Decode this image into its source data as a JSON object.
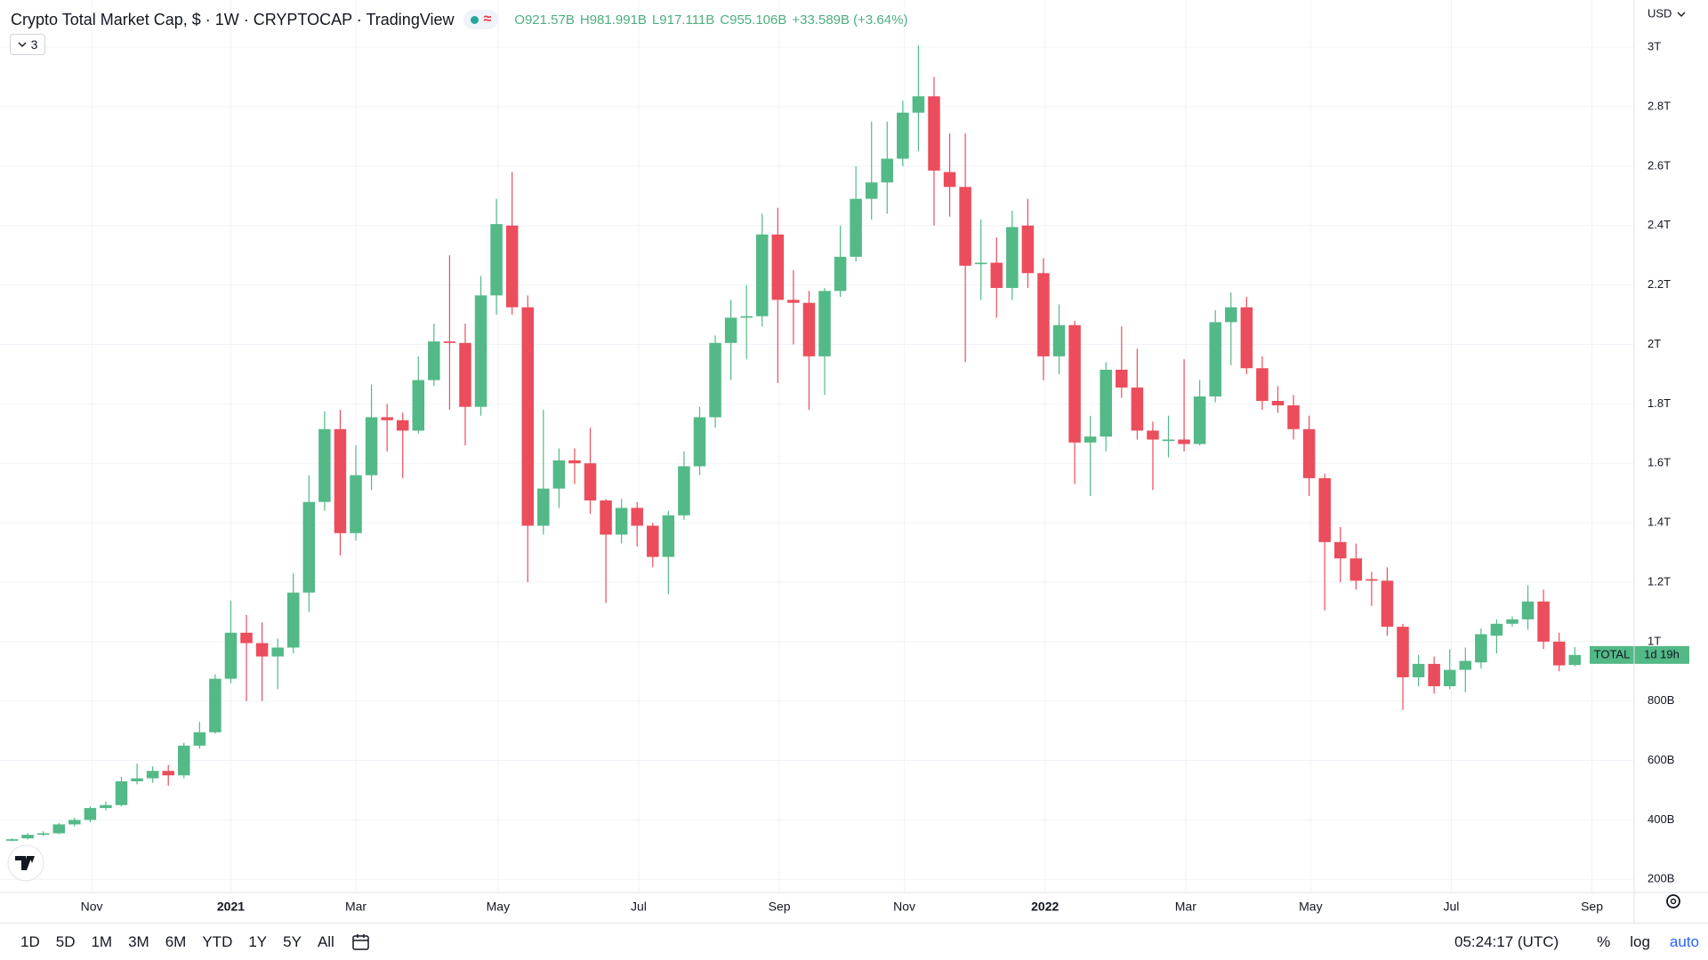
{
  "header": {
    "title": "Crypto Total Market Cap, $ · 1W · CRYPTOCAP · TradingView",
    "legend": [
      {
        "key": "O",
        "value": "921.57B"
      },
      {
        "key": "H",
        "value": "981.991B"
      },
      {
        "key": "L",
        "value": "917.111B"
      },
      {
        "key": "C",
        "value": "955.106B"
      }
    ],
    "change": "+33.589B (+3.64%)",
    "indicators": 3
  },
  "chart_data": {
    "type": "candlestick",
    "currency": "USD",
    "symbol_tag": "TOTAL",
    "countdown": "1d 19h",
    "up_color": "#53b987",
    "down_color": "#eb4d5c",
    "grid": true,
    "open": [
      330,
      338,
      350,
      355,
      385,
      400,
      440,
      450,
      530,
      540,
      565,
      550,
      650,
      695,
      875,
      1030,
      995,
      950,
      980,
      1165,
      1470,
      1715,
      1365,
      1560,
      1755,
      1745,
      1710,
      1880,
      2010,
      2005,
      1790,
      2165,
      2400,
      2125,
      1390,
      1515,
      1610,
      1600,
      1475,
      1360,
      1450,
      1390,
      1285,
      1425,
      1590,
      1755,
      2005,
      2090,
      2095,
      2370,
      2150,
      2140,
      1960,
      2180,
      2295,
      2490,
      2545,
      2625,
      2780,
      2835,
      2580,
      2530,
      2270,
      2275,
      2190,
      2400,
      2240,
      1960,
      2065,
      1670,
      1690,
      1915,
      1855,
      1710,
      1675,
      1680,
      1665,
      1825,
      2075,
      2125,
      1920,
      1810,
      1795,
      1715,
      1550,
      1335,
      1280,
      1210,
      1205,
      1050,
      880,
      925,
      850,
      905,
      930,
      1020,
      1060,
      1075,
      1135,
      1000,
      921.57
    ],
    "high": [
      338,
      356,
      362,
      390,
      408,
      446,
      462,
      545,
      590,
      580,
      585,
      660,
      730,
      890,
      1137,
      1090,
      1065,
      1010,
      1230,
      1560,
      1775,
      1780,
      1660,
      1865,
      1800,
      1770,
      1960,
      2070,
      2300,
      2070,
      2230,
      2490,
      2580,
      2165,
      1780,
      1650,
      1650,
      1720,
      1480,
      1480,
      1470,
      1400,
      1440,
      1640,
      1790,
      2030,
      2150,
      2200,
      2440,
      2460,
      2250,
      2180,
      2190,
      2400,
      2600,
      2750,
      2750,
      2820,
      3007,
      2900,
      2710,
      2710,
      2420,
      2360,
      2450,
      2490,
      2290,
      2135,
      2080,
      1760,
      1940,
      2060,
      1985,
      1740,
      1760,
      1950,
      1880,
      2115,
      2175,
      2160,
      1960,
      1860,
      1830,
      1760,
      1565,
      1385,
      1330,
      1235,
      1250,
      1060,
      955,
      950,
      975,
      980,
      1045,
      1075,
      1085,
      1190,
      1175,
      1030,
      981.991
    ],
    "low": [
      328,
      334,
      346,
      352,
      378,
      392,
      432,
      445,
      520,
      525,
      515,
      540,
      640,
      690,
      860,
      800,
      800,
      840,
      960,
      1100,
      1440,
      1290,
      1340,
      1510,
      1640,
      1550,
      1700,
      1860,
      1780,
      1660,
      1760,
      2100,
      2100,
      1200,
      1360,
      1450,
      1530,
      1430,
      1130,
      1330,
      1320,
      1250,
      1160,
      1410,
      1560,
      1720,
      1880,
      1950,
      2060,
      1870,
      2000,
      1780,
      1830,
      2160,
      2280,
      2420,
      2440,
      2600,
      2650,
      2400,
      2430,
      1940,
      2150,
      2090,
      2150,
      2190,
      1880,
      1900,
      1530,
      1490,
      1640,
      1820,
      1680,
      1510,
      1620,
      1640,
      1660,
      1805,
      1930,
      1900,
      1780,
      1770,
      1680,
      1490,
      1105,
      1200,
      1175,
      1120,
      1020,
      770,
      850,
      825,
      840,
      830,
      910,
      960,
      1050,
      1040,
      975,
      900,
      917.111
    ],
    "close": [
      335,
      350,
      355,
      385,
      400,
      440,
      450,
      530,
      540,
      565,
      550,
      650,
      695,
      875,
      1030,
      995,
      950,
      980,
      1165,
      1470,
      1715,
      1365,
      1560,
      1755,
      1745,
      1710,
      1880,
      2010,
      2005,
      1790,
      2165,
      2405,
      2125,
      1390,
      1515,
      1610,
      1600,
      1475,
      1360,
      1450,
      1390,
      1285,
      1425,
      1590,
      1755,
      2005,
      2090,
      2095,
      2370,
      2150,
      2140,
      1960,
      2180,
      2295,
      2490,
      2545,
      2625,
      2780,
      2835,
      2585,
      2530,
      2265,
      2275,
      2190,
      2395,
      2240,
      1960,
      2065,
      1670,
      1690,
      1915,
      1855,
      1710,
      1680,
      1680,
      1665,
      1825,
      2075,
      2125,
      1920,
      1810,
      1795,
      1715,
      1550,
      1335,
      1280,
      1205,
      1205,
      1050,
      880,
      925,
      850,
      905,
      935,
      1025,
      1060,
      1075,
      1135,
      1000,
      920,
      955.106
    ],
    "ylim": [
      156,
      3159
    ],
    "yticks": [
      {
        "value": 200,
        "label": "200B"
      },
      {
        "value": 400,
        "label": "400B"
      },
      {
        "value": 600,
        "label": "600B"
      },
      {
        "value": 800,
        "label": "800B"
      },
      {
        "value": 1000,
        "label": "1T"
      },
      {
        "value": 1200,
        "label": "1.2T"
      },
      {
        "value": 1400,
        "label": "1.4T"
      },
      {
        "value": 1600,
        "label": "1.6T"
      },
      {
        "value": 1800,
        "label": "1.8T"
      },
      {
        "value": 2000,
        "label": "2T"
      },
      {
        "value": 2200,
        "label": "2.2T"
      },
      {
        "value": 2400,
        "label": "2.4T"
      },
      {
        "value": 2600,
        "label": "2.6T"
      },
      {
        "value": 2800,
        "label": "2.8T"
      },
      {
        "value": 3000,
        "label": "3T"
      }
    ],
    "xlim": [
      -0.77,
      103.8
    ],
    "xticks": [
      {
        "value": 5.1,
        "label": "Nov"
      },
      {
        "value": 14,
        "label": "2021"
      },
      {
        "value": 22,
        "label": "Mar"
      },
      {
        "value": 31.1,
        "label": "May"
      },
      {
        "value": 40.1,
        "label": "Jul"
      },
      {
        "value": 49.1,
        "label": "Sep"
      },
      {
        "value": 57.1,
        "label": "Nov"
      },
      {
        "value": 66.1,
        "label": "2022"
      },
      {
        "value": 75.1,
        "label": "Mar"
      },
      {
        "value": 83.1,
        "label": "May"
      },
      {
        "value": 92.1,
        "label": "Jul"
      },
      {
        "value": 101.1,
        "label": "Sep"
      }
    ]
  },
  "toolbar": {
    "ranges": [
      "1D",
      "5D",
      "1M",
      "3M",
      "6M",
      "YTD",
      "1Y",
      "5Y",
      "All"
    ],
    "clock": "05:24:17 (UTC)",
    "options": [
      "%",
      "log",
      "auto"
    ]
  }
}
